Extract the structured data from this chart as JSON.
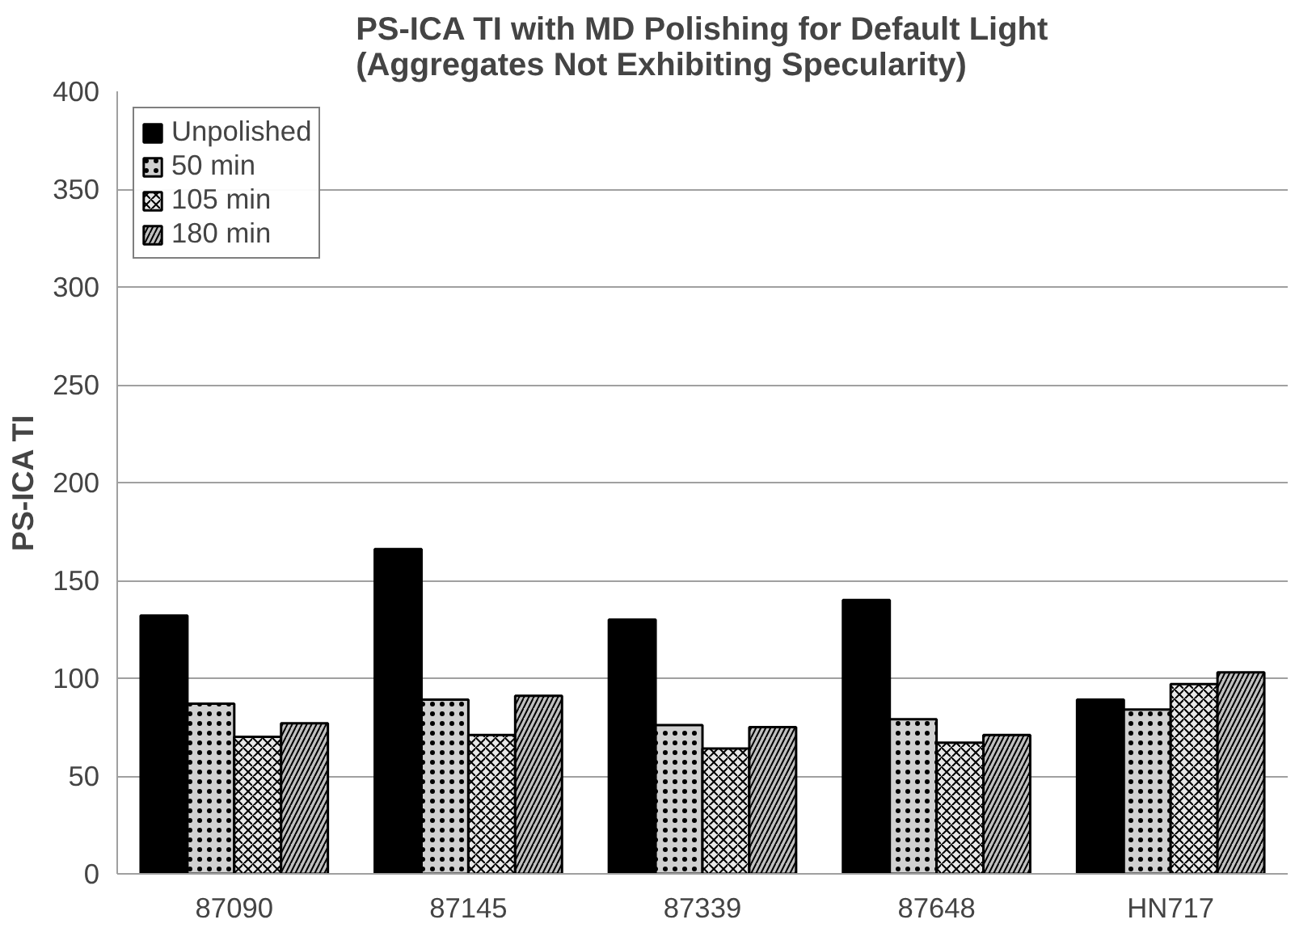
{
  "chart_data": {
    "type": "bar",
    "title": "PS-ICA TI with MD Polishing for Default Light\n(Aggregates Not Exhibiting Specularity)",
    "ylabel": "PS-ICA TI",
    "categories": [
      "87090",
      "87145",
      "87339",
      "87648",
      "HN717"
    ],
    "series": [
      {
        "name": "Unpolished",
        "color": "#000000",
        "values": [
          132,
          166,
          130,
          140,
          89
        ]
      },
      {
        "name": "50 min",
        "color": "#d0d0d0",
        "values": [
          87,
          89,
          76,
          79,
          84
        ]
      },
      {
        "name": "105 min",
        "color": "#e8e8e8",
        "values": [
          70,
          71,
          64,
          67,
          97
        ]
      },
      {
        "name": "180 min",
        "color": "#c0c0c0",
        "values": [
          77,
          91,
          75,
          71,
          103
        ]
      }
    ],
    "ylim": [
      0,
      400
    ],
    "yticks": [
      0,
      50,
      100,
      150,
      200,
      250,
      300,
      350,
      400
    ],
    "grid": "y",
    "legend": "top left"
  }
}
